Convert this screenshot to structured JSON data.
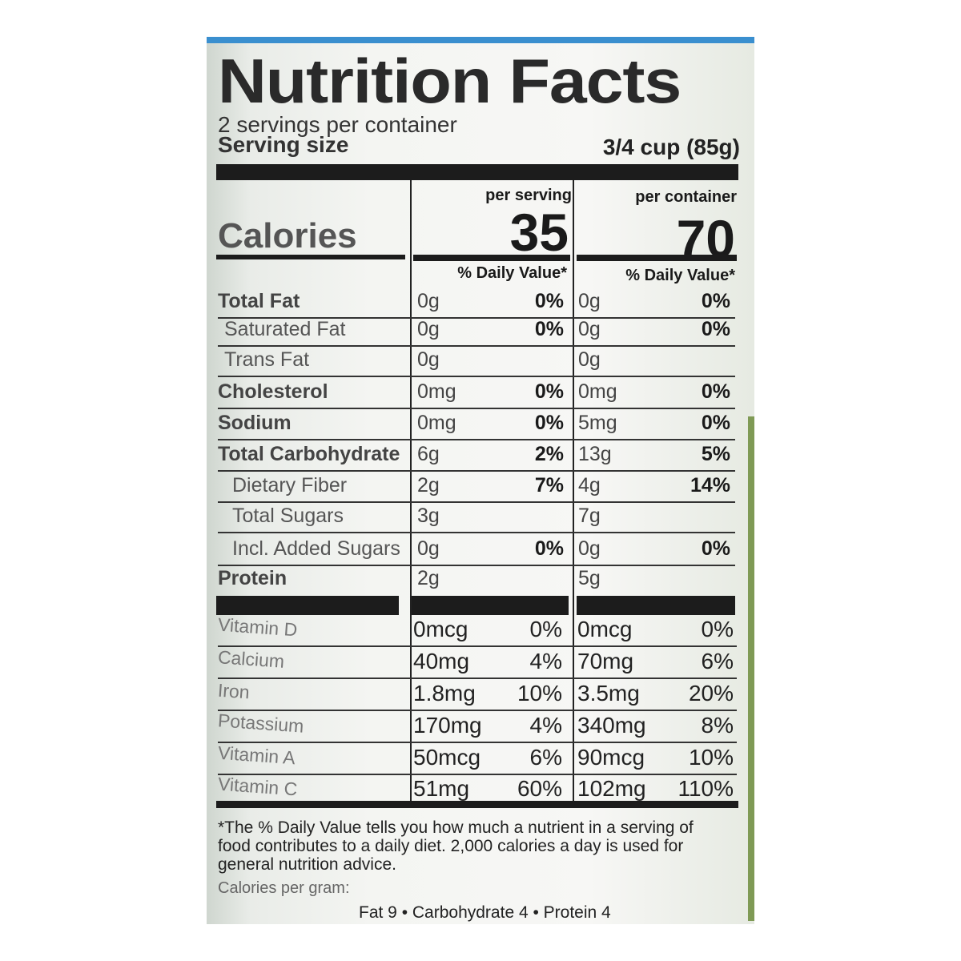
{
  "label": {
    "title": "Nutrition Facts",
    "servings_per_container": "2 servings per container",
    "serving_size_label": "Serving size",
    "serving_size_value": "3/4 cup (85g)",
    "per_serving_header": "per serving",
    "per_container_header": "per container",
    "calories_label": "Calories",
    "calories_per_serving": "35",
    "calories_per_container": "70",
    "daily_value_header": "% Daily Value*",
    "nutrients": [
      {
        "name": "Total Fat",
        "serving_amount": "0g",
        "serving_dv": "0%",
        "container_amount": "0g",
        "container_dv": "0%"
      },
      {
        "name": "Saturated Fat",
        "serving_amount": "0g",
        "serving_dv": "0%",
        "container_amount": "0g",
        "container_dv": "0%"
      },
      {
        "name": "Trans Fat",
        "serving_amount": "0g",
        "serving_dv": "",
        "container_amount": "0g",
        "container_dv": ""
      },
      {
        "name": "Cholesterol",
        "serving_amount": "0mg",
        "serving_dv": "0%",
        "container_amount": "0mg",
        "container_dv": "0%"
      },
      {
        "name": "Sodium",
        "serving_amount": "0mg",
        "serving_dv": "0%",
        "container_amount": "5mg",
        "container_dv": "0%"
      },
      {
        "name": "Total Carbohydrate",
        "serving_amount": "6g",
        "serving_dv": "2%",
        "container_amount": "13g",
        "container_dv": "5%"
      },
      {
        "name": "Dietary Fiber",
        "serving_amount": "2g",
        "serving_dv": "7%",
        "container_amount": "4g",
        "container_dv": "14%"
      },
      {
        "name": "Total Sugars",
        "serving_amount": "3g",
        "serving_dv": "",
        "container_amount": "7g",
        "container_dv": ""
      },
      {
        "name": "Incl. Added Sugars",
        "serving_amount": "0g",
        "serving_dv": "0%",
        "container_amount": "0g",
        "container_dv": "0%"
      },
      {
        "name": "Protein",
        "serving_amount": "2g",
        "serving_dv": "",
        "container_amount": "5g",
        "container_dv": ""
      }
    ],
    "vitamins": [
      {
        "name": "Vitamin D",
        "serving_amount": "0mcg",
        "serving_dv": "0%",
        "container_amount": "0mcg",
        "container_dv": "0%"
      },
      {
        "name": "Calcium",
        "serving_amount": "40mg",
        "serving_dv": "4%",
        "container_amount": "70mg",
        "container_dv": "6%"
      },
      {
        "name": "Iron",
        "serving_amount": "1.8mg",
        "serving_dv": "10%",
        "container_amount": "3.5mg",
        "container_dv": "20%"
      },
      {
        "name": "Potassium",
        "serving_amount": "170mg",
        "serving_dv": "4%",
        "container_amount": "340mg",
        "container_dv": "8%"
      },
      {
        "name": "Vitamin A",
        "serving_amount": "50mcg",
        "serving_dv": "6%",
        "container_amount": "90mcg",
        "container_dv": "10%"
      },
      {
        "name": "Vitamin C",
        "serving_amount": "51mg",
        "serving_dv": "60%",
        "container_amount": "102mg",
        "container_dv": "110%"
      }
    ],
    "footnote": "*The % Daily Value tells you how much a nutrient in a serving of food contributes to a daily diet. 2,000 calories a day is used for general nutrition advice.",
    "calories_per_gram_label": "Calories per gram:",
    "calories_per_gram_values": "Fat 9  •  Carbohydrate 4  •  Protein 4"
  },
  "colors": {
    "package_edge_top": "#3a8fcf",
    "package_edge_right": "#7f9a55",
    "ink": "#1c1c1c"
  }
}
